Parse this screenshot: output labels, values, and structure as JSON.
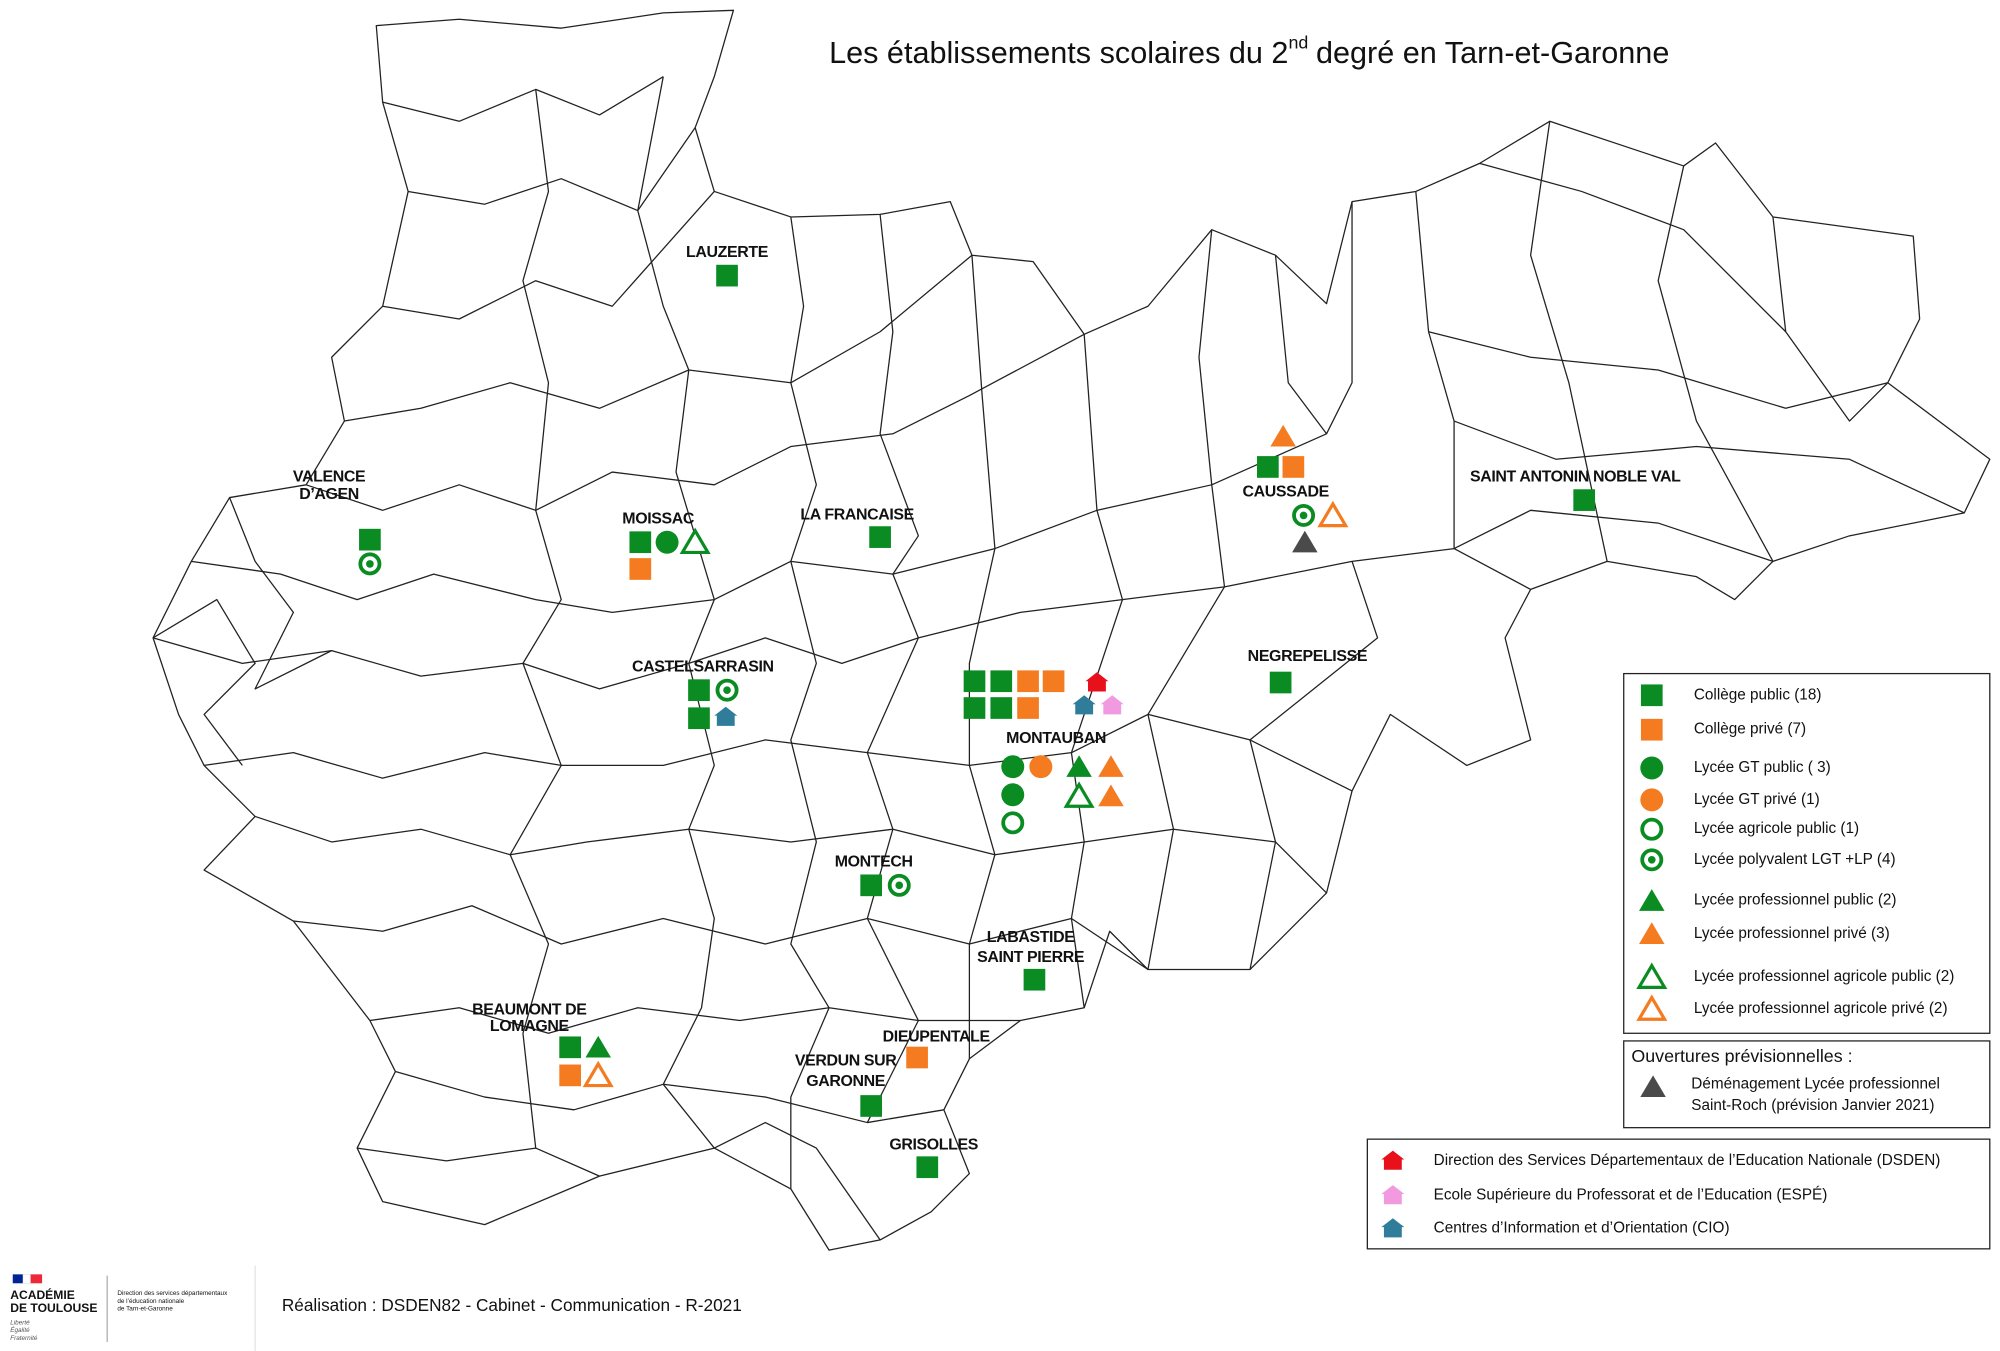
{
  "header": {
    "title": {
      "main": "Les établissements scolaires du 2",
      "superscript": "nd",
      "rest": "degré en Tarn-et-Garonne"
    }
  },
  "map": {
    "towns": [
      {
        "label": [
          "LAUZERTE"
        ]
      },
      {
        "label": [
          "VALENCE",
          "D’AGEN"
        ]
      },
      {
        "label": [
          "MOISSAC"
        ]
      },
      {
        "label": [
          "LA FRANCAISE"
        ]
      },
      {
        "label": [
          "CAUSSADE"
        ]
      },
      {
        "label": [
          "SAINT ANTONIN NOBLE VAL"
        ]
      },
      {
        "label": [
          "NEGREPELISSE"
        ]
      },
      {
        "label": [
          "CASTELSARRASIN"
        ]
      },
      {
        "label": [
          "MONTAUBAN"
        ]
      },
      {
        "label": [
          "MONTECH"
        ]
      },
      {
        "label": [
          "LABASTIDE",
          "SAINT PIERRE"
        ]
      },
      {
        "label": [
          "BEAUMONT DE",
          "LOMAGNE"
        ]
      },
      {
        "label": [
          "DIEUPENTALE"
        ]
      },
      {
        "label": [
          "VERDUN SUR",
          "GARONNE"
        ]
      },
      {
        "label": [
          "GRISOLLES"
        ]
      }
    ]
  },
  "legend": {
    "items": [
      "Collège public (18)",
      "Collège privé (7)",
      "Lycée GT public ( 3)",
      "Lycée GT privé (1)",
      "Lycée agricole public (1)",
      "Lycée polyvalent  LGT +LP (4)",
      "Lycée professionnel  public (2)",
      "Lycée professionnel privé (3)",
      "Lycée professionnel agricole public (2)",
      "Lycée professionnel agricole privé (2)"
    ],
    "openings": {
      "title": "Ouvertures prévisionnelles :",
      "items": [
        [
          "Déménagement Lycée professionnel",
          "Saint-Roch (prévision Janvier 2021)"
        ]
      ]
    },
    "services": [
      "Direction des Services Départementaux de l’Education Nationale (DSDEN)",
      "Ecole Supérieure du Professorat et de l’Education (ESPÉ)",
      "Centres d’Information et d’Orientation (CIO)"
    ]
  },
  "footer": {
    "logo": {
      "name": [
        "ACADÉMIE",
        "DE TOULOUSE"
      ],
      "motto": [
        "Liberté",
        "Égalité",
        "Fraternité"
      ]
    },
    "department": [
      "Direction des services départementaux",
      "de l’éducation nationale",
      "de Tarn-et-Garonne"
    ],
    "credit": "Réalisation : DSDEN82 - Cabinet - Communication - R-2021"
  }
}
